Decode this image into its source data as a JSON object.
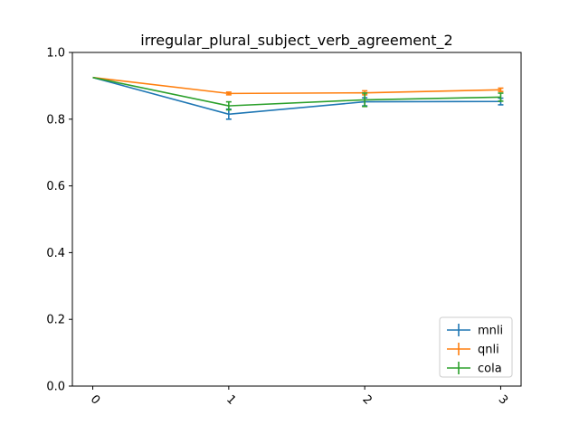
{
  "chart_data": {
    "type": "line",
    "title": "irregular_plural_subject_verb_agreement_2",
    "xlabel": "",
    "ylabel": "",
    "categories": [
      "0",
      "1",
      "2",
      "3"
    ],
    "x": [
      0,
      1,
      2,
      3
    ],
    "ylim": [
      0.0,
      1.0
    ],
    "yticks": [
      "0.0",
      "0.2",
      "0.4",
      "0.6",
      "0.8",
      "1.0"
    ],
    "grid": false,
    "legend_position": "lower-right",
    "series": [
      {
        "name": "mnli",
        "color": "#1f77b4",
        "values": [
          0.925,
          0.815,
          0.852,
          0.853
        ],
        "errors": [
          0.0,
          0.015,
          0.012,
          0.01
        ]
      },
      {
        "name": "qnli",
        "color": "#ff7f0e",
        "values": [
          0.925,
          0.877,
          0.879,
          0.888
        ],
        "errors": [
          0.0,
          0.004,
          0.006,
          0.005
        ]
      },
      {
        "name": "cola",
        "color": "#2ca02c",
        "values": [
          0.925,
          0.84,
          0.858,
          0.866
        ],
        "errors": [
          0.0,
          0.012,
          0.02,
          0.012
        ]
      }
    ]
  }
}
